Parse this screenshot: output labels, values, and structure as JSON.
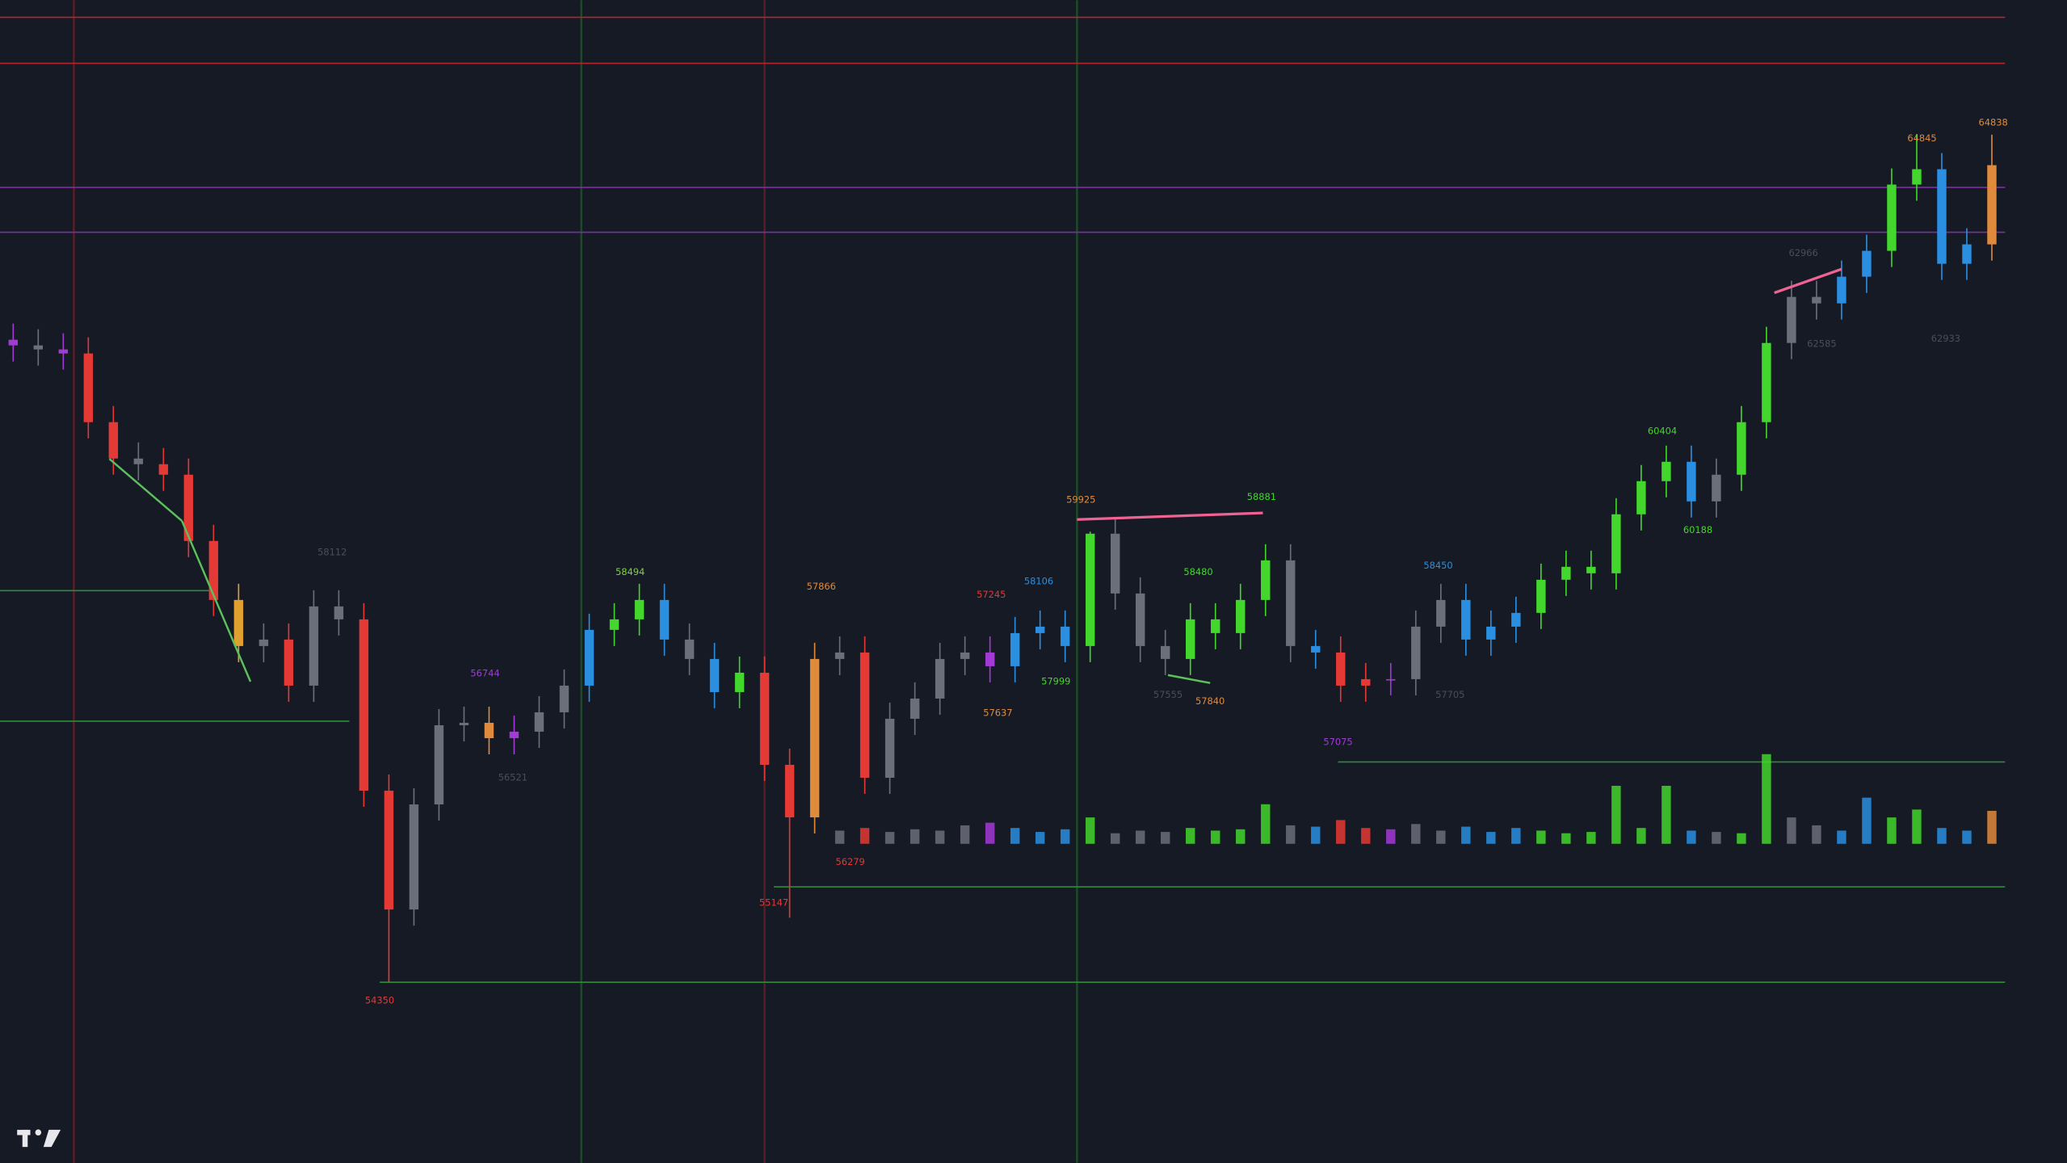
{
  "chart_data": {
    "type": "candlestick",
    "ylim": [
      52116,
      66501
    ],
    "open": [
      62300,
      62230,
      62180,
      62130,
      61280,
      60830,
      60760,
      60630,
      59810,
      59080,
      58510,
      58590,
      58020,
      59000,
      58840,
      56720,
      55250,
      56550,
      57530,
      57560,
      57370,
      57450,
      57690,
      58020,
      58710,
      58840,
      59080,
      58590,
      58350,
      57940,
      58180,
      57040,
      56390,
      58350,
      58430,
      56880,
      57610,
      57860,
      58350,
      58430,
      58260,
      58670,
      58750,
      58510,
      59900,
      59160,
      58510,
      58350,
      58840,
      58670,
      59080,
      59570,
      58510,
      58430,
      58020,
      58100,
      58100,
      58750,
      59080,
      58590,
      58750,
      58920,
      59330,
      59490,
      59410,
      60140,
      60550,
      60790,
      60300,
      60630,
      61280,
      62260,
      62830,
      62750,
      63080,
      63400,
      64220,
      64410,
      63240,
      63480
    ],
    "high": [
      62500,
      62430,
      62380,
      62330,
      61480,
      61030,
      60960,
      60830,
      60010,
      59280,
      58790,
      58790,
      59200,
      59200,
      59040,
      56920,
      56750,
      57730,
      57760,
      57760,
      57650,
      57890,
      58220,
      58910,
      59040,
      59280,
      59280,
      58790,
      58550,
      58380,
      58380,
      57240,
      58550,
      58630,
      58630,
      57810,
      58060,
      58550,
      58630,
      58630,
      58870,
      58950,
      58950,
      59925,
      60100,
      59360,
      58710,
      59040,
      59040,
      59280,
      59770,
      59770,
      58710,
      58630,
      58300,
      58300,
      58950,
      59280,
      59280,
      58950,
      59120,
      59530,
      59690,
      59690,
      60340,
      60750,
      60990,
      60990,
      60830,
      61480,
      62460,
      63030,
      63030,
      63280,
      63600,
      64420,
      64845,
      64610,
      63680,
      64838
    ],
    "low": [
      62030,
      61980,
      61930,
      61080,
      60630,
      60560,
      60430,
      59610,
      58880,
      58310,
      58310,
      57820,
      57820,
      58640,
      56520,
      54350,
      55050,
      56350,
      57330,
      57170,
      57170,
      57250,
      57490,
      57820,
      58510,
      58640,
      58390,
      58150,
      57740,
      57740,
      56840,
      55147,
      56190,
      58150,
      56680,
      56680,
      57410,
      57660,
      58150,
      58060,
      58060,
      58470,
      58310,
      58310,
      58960,
      58310,
      58150,
      58150,
      58470,
      58470,
      58880,
      58310,
      58230,
      57820,
      57820,
      57900,
      57900,
      58550,
      58390,
      58390,
      58550,
      58720,
      59130,
      59210,
      59210,
      59940,
      60350,
      60100,
      60100,
      60430,
      61080,
      62060,
      62550,
      62550,
      62880,
      63200,
      64020,
      63040,
      63040,
      63280
    ],
    "close": [
      62230,
      62180,
      62130,
      61280,
      60830,
      60760,
      60630,
      59810,
      59080,
      58510,
      58590,
      58020,
      59000,
      58840,
      56720,
      55250,
      56550,
      57530,
      57560,
      57370,
      57450,
      57690,
      58020,
      58710,
      58840,
      59080,
      58590,
      58350,
      57940,
      58180,
      57040,
      56390,
      58350,
      58430,
      56880,
      57610,
      57860,
      58350,
      58430,
      58260,
      58670,
      58750,
      58510,
      59900,
      59160,
      58510,
      58350,
      58840,
      58670,
      59080,
      59570,
      58510,
      58430,
      58020,
      58100,
      58100,
      58750,
      59080,
      58590,
      58750,
      58920,
      59330,
      59490,
      59410,
      60140,
      60550,
      60790,
      60300,
      60630,
      61280,
      62260,
      62830,
      62750,
      63080,
      63400,
      64220,
      64410,
      63240,
      63480,
      64460
    ],
    "colors": [
      "#a23ad6",
      "#6b6f7a",
      "#a23ad6",
      "#e53935",
      "#e53935",
      "#6b6f7a",
      "#e53935",
      "#e53935",
      "#e53935",
      "#e0a030",
      "#6b6f7a",
      "#e53935",
      "#6b6f7a",
      "#6b6f7a",
      "#e53935",
      "#e53935",
      "#6b6f7a",
      "#6b6f7a",
      "#6b6f7a",
      "#e08a3c",
      "#a23ad6",
      "#6b6f7a",
      "#6b6f7a",
      "#2a8fe0",
      "#43d62c",
      "#43d62c",
      "#2a8fe0",
      "#6b6f7a",
      "#2a8fe0",
      "#43d62c",
      "#e53935",
      "#e53935",
      "#e08a3c",
      "#6b6f7a",
      "#e53935",
      "#6b6f7a",
      "#6b6f7a",
      "#6b6f7a",
      "#6b6f7a",
      "#a23ad6",
      "#2a8fe0",
      "#2a8fe0",
      "#2a8fe0",
      "#43d62c",
      "#6b6f7a",
      "#6b6f7a",
      "#6b6f7a",
      "#43d62c",
      "#43d62c",
      "#43d62c",
      "#43d62c",
      "#6b6f7a",
      "#2a8fe0",
      "#e53935",
      "#e53935",
      "#a23ad6",
      "#6b6f7a",
      "#6b6f7a",
      "#2a8fe0",
      "#2a8fe0",
      "#2a8fe0",
      "#43d62c",
      "#43d62c",
      "#43d62c",
      "#43d62c",
      "#43d62c",
      "#43d62c",
      "#2a8fe0",
      "#6b6f7a",
      "#43d62c",
      "#43d62c",
      "#6b6f7a",
      "#6b6f7a",
      "#2a8fe0",
      "#2a8fe0",
      "#43d62c",
      "#43d62c",
      "#2a8fe0",
      "#2a8fe0",
      "#e08a3c"
    ],
    "volume": [
      null,
      null,
      null,
      null,
      null,
      null,
      null,
      null,
      null,
      null,
      null,
      null,
      null,
      null,
      null,
      null,
      null,
      null,
      null,
      null,
      null,
      null,
      null,
      null,
      null,
      null,
      null,
      null,
      null,
      null,
      null,
      null,
      null,
      10,
      12,
      9,
      11,
      10,
      14,
      16,
      12,
      9,
      11,
      20,
      8,
      10,
      9,
      12,
      10,
      11,
      30,
      14,
      13,
      18,
      12,
      11,
      15,
      10,
      13,
      9,
      12,
      10,
      8,
      9,
      44,
      12,
      44,
      10,
      9,
      8,
      68,
      20,
      14,
      10,
      35,
      20,
      26,
      12,
      10,
      25
    ],
    "levels": [
      {
        "value": 66290,
        "color": "#b3262e"
      },
      {
        "value": 65720,
        "color": "#b3262e"
      },
      {
        "value": 64185,
        "color": "#7b2fa0"
      },
      {
        "value": 63630,
        "color": "#7b2fa0"
      },
      {
        "value": 59195,
        "color": "#2e8b3a"
      },
      {
        "value": 57580,
        "color": "#2e8b3a"
      },
      {
        "value": 57075,
        "color": "#2e8b3a"
      },
      {
        "value": 55530,
        "color": "#2e8b3a"
      },
      {
        "value": 54350,
        "color": "#2e8b3a"
      }
    ],
    "annotations": [
      {
        "text": "58494",
        "color": "#7cd23b"
      },
      {
        "text": "56744",
        "color": "#a23ad6"
      },
      {
        "text": "57866",
        "color": "#e08a3c"
      },
      {
        "text": "57245",
        "color": "#e53935"
      },
      {
        "text": "58106",
        "color": "#2a8fe0"
      },
      {
        "text": "59925",
        "color": "#e08a3c"
      },
      {
        "text": "58881",
        "color": "#43d62c"
      },
      {
        "text": "58480",
        "color": "#43d62c"
      },
      {
        "text": "57999",
        "color": "#43d62c"
      },
      {
        "text": "57075",
        "color": "#a23ad6"
      },
      {
        "text": "58450",
        "color": "#2a8fe0"
      },
      {
        "text": "60404",
        "color": "#43d62c"
      },
      {
        "text": "60188",
        "color": "#43d62c"
      },
      {
        "text": "64845",
        "color": "#e08a3c"
      },
      {
        "text": "64838",
        "color": "#e08a3c"
      },
      {
        "text": "54350",
        "color": "#e53935"
      },
      {
        "text": "55147",
        "color": "#e53935"
      },
      {
        "text": "56279",
        "color": "#e53935"
      },
      {
        "text": "57840",
        "color": "#e08a3c"
      },
      {
        "text": "57637",
        "color": "#e08a3c"
      },
      {
        "text": "58112",
        "color": "#4a4e58"
      },
      {
        "text": "56521",
        "color": "#4a4e58"
      },
      {
        "text": "57555",
        "color": "#4a4e58"
      },
      {
        "text": "57705",
        "color": "#4a4e58"
      },
      {
        "text": "62966",
        "color": "#4a4e58"
      },
      {
        "text": "62585",
        "color": "#4a4e58"
      },
      {
        "text": "62933",
        "color": "#4a4e58"
      }
    ]
  }
}
